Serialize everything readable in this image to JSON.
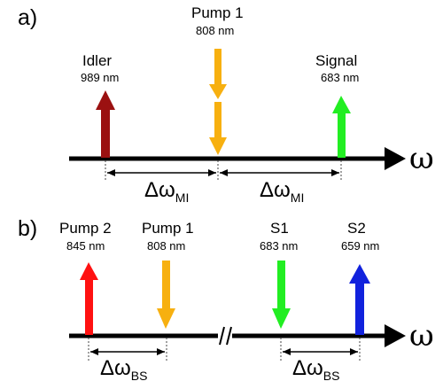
{
  "panel_a": {
    "label": "a)",
    "axis_symbol": "ω",
    "beams": [
      {
        "name": "Idler",
        "wavelength": "989 nm",
        "direction": "up",
        "color": "#9b1111"
      },
      {
        "name": "Pump 1",
        "wavelength": "808 nm",
        "direction": "down",
        "color": "#f7b010"
      },
      {
        "name": "Signal",
        "wavelength": "683 nm",
        "direction": "up",
        "color": "#22ee22"
      }
    ],
    "separations": [
      {
        "main": "Δω",
        "sub": "MI"
      },
      {
        "main": "Δω",
        "sub": "MI"
      }
    ]
  },
  "panel_b": {
    "label": "b)",
    "axis_symbol": "ω",
    "axis_break": true,
    "beams": [
      {
        "name": "Pump 2",
        "wavelength": "845 nm",
        "direction": "up",
        "color": "#ff1111"
      },
      {
        "name": "Pump 1",
        "wavelength": "808 nm",
        "direction": "down",
        "color": "#f7b010"
      },
      {
        "name": "S1",
        "wavelength": "683 nm",
        "direction": "down",
        "color": "#22ee22"
      },
      {
        "name": "S2",
        "wavelength": "659 nm",
        "direction": "up",
        "color": "#1122dd"
      }
    ],
    "separations": [
      {
        "main": "Δω",
        "sub": "BS"
      },
      {
        "main": "Δω",
        "sub": "BS"
      }
    ]
  }
}
